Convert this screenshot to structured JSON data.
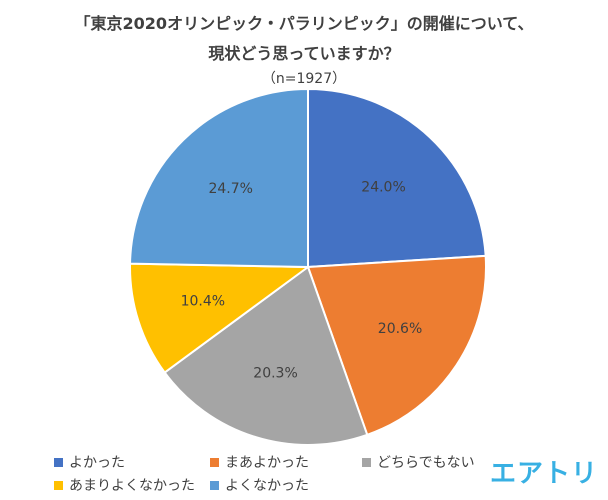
{
  "title_line1": "「東京2020オリンピック・パラリンピック」の開催について、",
  "title_line2": "現状どう思っていますか？",
  "sample_size": "（n=1927）",
  "brand": "エアトリ",
  "chart_data": {
    "type": "pie",
    "title": "「東京2020オリンピック・パラリンピック」の開催について、現状どう思っていますか？",
    "subtitle": "（n=1927）",
    "legend_position": "bottom",
    "series": [
      {
        "label": "よかった",
        "value": 24.0,
        "display": "24.0%",
        "color": "#4472c4"
      },
      {
        "label": "まあよかった",
        "value": 20.6,
        "display": "20.6%",
        "color": "#ed7d31"
      },
      {
        "label": "どちらでもない",
        "value": 20.3,
        "display": "20.3%",
        "color": "#a5a5a5"
      },
      {
        "label": "あまりよくなかった",
        "value": 10.4,
        "display": "10.4%",
        "color": "#ffc000"
      },
      {
        "label": "よくなかった",
        "value": 24.7,
        "display": "24.7%",
        "color": "#5b9bd5"
      }
    ]
  }
}
